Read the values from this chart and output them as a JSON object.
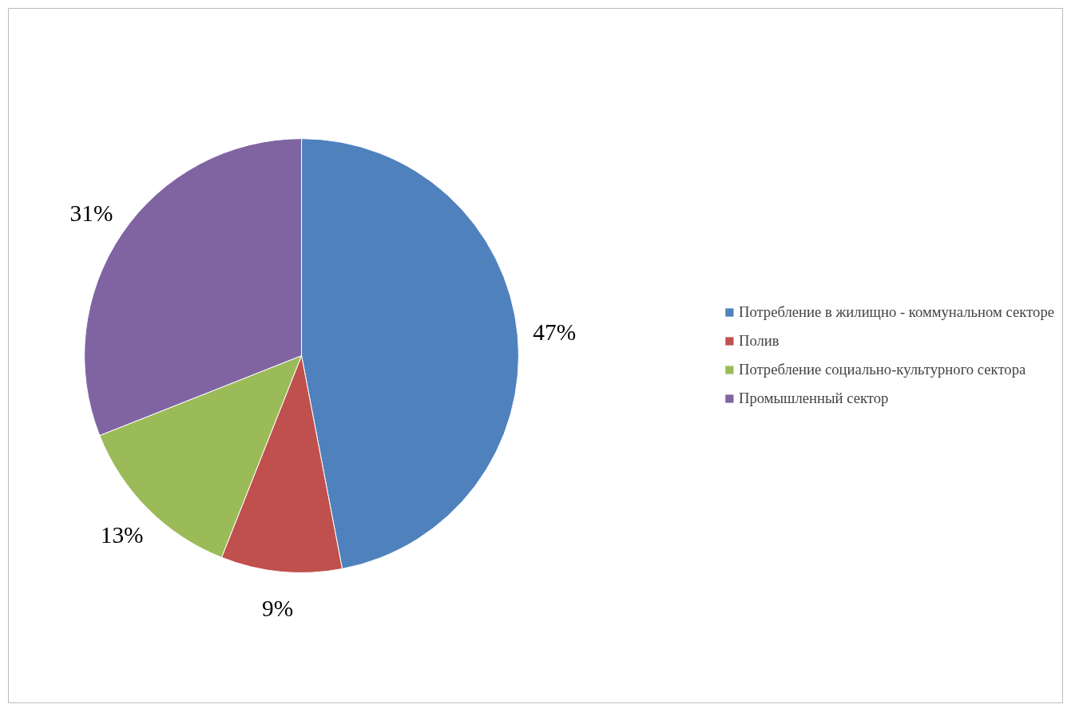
{
  "chart_data": {
    "type": "pie",
    "categories": [
      "Потребление в жилищно - коммунальном секторе",
      "Полив",
      "Потребление социально-культурного сектора",
      "Промышленный сектор"
    ],
    "values": [
      47,
      9,
      13,
      31
    ],
    "colors": [
      "#4f81bd",
      "#c0504d",
      "#9bbb59",
      "#8064a2"
    ],
    "value_labels": [
      "47%",
      "9%",
      "13%",
      "31%"
    ],
    "legend": "right"
  }
}
